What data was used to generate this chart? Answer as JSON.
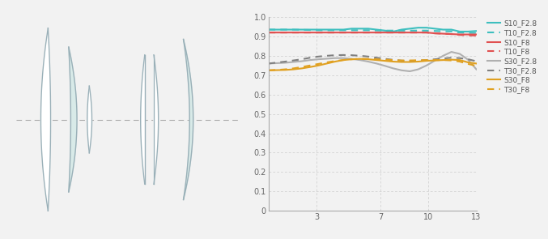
{
  "title": "",
  "xlim": [
    0,
    13
  ],
  "ylim": [
    0,
    1.0
  ],
  "xticks": [
    3,
    7,
    10,
    13
  ],
  "yticks": [
    0,
    0.1,
    0.2,
    0.3,
    0.4,
    0.5,
    0.6,
    0.7,
    0.8,
    0.9,
    1
  ],
  "bg_color": "#f2f2f2",
  "plot_bg": "#f2f2f2",
  "series": [
    {
      "label": "S10_F2.8",
      "color": "#3dbfbf",
      "linestyle": "solid",
      "lw": 1.5,
      "y": [
        0.935,
        0.935,
        0.935,
        0.935,
        0.935,
        0.935,
        0.935,
        0.935,
        0.935,
        0.935,
        0.94,
        0.94,
        0.94,
        0.935,
        0.93,
        0.925,
        0.935,
        0.94,
        0.945,
        0.945,
        0.94,
        0.935,
        0.935,
        0.925,
        0.925,
        0.928
      ]
    },
    {
      "label": "T10_F2.8",
      "color": "#3dbfbf",
      "linestyle": "dashed",
      "lw": 1.5,
      "y": [
        0.935,
        0.935,
        0.935,
        0.935,
        0.934,
        0.933,
        0.932,
        0.932,
        0.932,
        0.932,
        0.932,
        0.932,
        0.932,
        0.931,
        0.93,
        0.93,
        0.93,
        0.93,
        0.93,
        0.93,
        0.928,
        0.927,
        0.926,
        0.92,
        0.918,
        0.918
      ]
    },
    {
      "label": "S10_F8",
      "color": "#e05050",
      "linestyle": "solid",
      "lw": 1.5,
      "y": [
        0.92,
        0.92,
        0.92,
        0.92,
        0.92,
        0.92,
        0.92,
        0.92,
        0.92,
        0.92,
        0.92,
        0.92,
        0.92,
        0.92,
        0.92,
        0.92,
        0.92,
        0.92,
        0.92,
        0.92,
        0.916,
        0.914,
        0.912,
        0.91,
        0.91,
        0.91
      ]
    },
    {
      "label": "T10_F8",
      "color": "#e05050",
      "linestyle": "dashed",
      "lw": 1.5,
      "y": [
        0.92,
        0.92,
        0.92,
        0.92,
        0.92,
        0.92,
        0.92,
        0.92,
        0.92,
        0.92,
        0.92,
        0.92,
        0.92,
        0.92,
        0.92,
        0.92,
        0.92,
        0.92,
        0.92,
        0.92,
        0.916,
        0.914,
        0.912,
        0.908,
        0.905,
        0.905
      ]
    },
    {
      "label": "S30_F2.8",
      "color": "#b0b0b0",
      "linestyle": "solid",
      "lw": 1.5,
      "y": [
        0.76,
        0.762,
        0.764,
        0.768,
        0.772,
        0.778,
        0.782,
        0.785,
        0.788,
        0.788,
        0.784,
        0.778,
        0.77,
        0.76,
        0.748,
        0.735,
        0.725,
        0.72,
        0.73,
        0.75,
        0.775,
        0.8,
        0.82,
        0.81,
        0.78,
        0.73
      ]
    },
    {
      "label": "T30_F2.8",
      "color": "#808080",
      "linestyle": "dashed",
      "lw": 1.5,
      "y": [
        0.76,
        0.765,
        0.77,
        0.776,
        0.782,
        0.79,
        0.796,
        0.8,
        0.803,
        0.804,
        0.803,
        0.8,
        0.796,
        0.79,
        0.784,
        0.779,
        0.775,
        0.773,
        0.775,
        0.778,
        0.782,
        0.786,
        0.79,
        0.788,
        0.782,
        0.772
      ]
    },
    {
      "label": "S30_F8",
      "color": "#e0a020",
      "linestyle": "solid",
      "lw": 1.5,
      "y": [
        0.725,
        0.726,
        0.727,
        0.73,
        0.735,
        0.742,
        0.75,
        0.76,
        0.77,
        0.778,
        0.782,
        0.784,
        0.782,
        0.778,
        0.774,
        0.77,
        0.768,
        0.768,
        0.77,
        0.774,
        0.776,
        0.778,
        0.78,
        0.778,
        0.766,
        0.76
      ]
    },
    {
      "label": "T30_F8",
      "color": "#e0a020",
      "linestyle": "dashed",
      "lw": 1.5,
      "y": [
        0.725,
        0.727,
        0.73,
        0.735,
        0.742,
        0.75,
        0.758,
        0.766,
        0.773,
        0.778,
        0.782,
        0.784,
        0.784,
        0.782,
        0.78,
        0.778,
        0.776,
        0.776,
        0.777,
        0.778,
        0.778,
        0.778,
        0.776,
        0.77,
        0.758,
        0.748
      ]
    }
  ],
  "lens_bg": "#f2f2f2",
  "lens_color": "#9ab0b8",
  "lens_fill_tinted": "#d8eae8",
  "lens_fill_white": "#ffffff"
}
